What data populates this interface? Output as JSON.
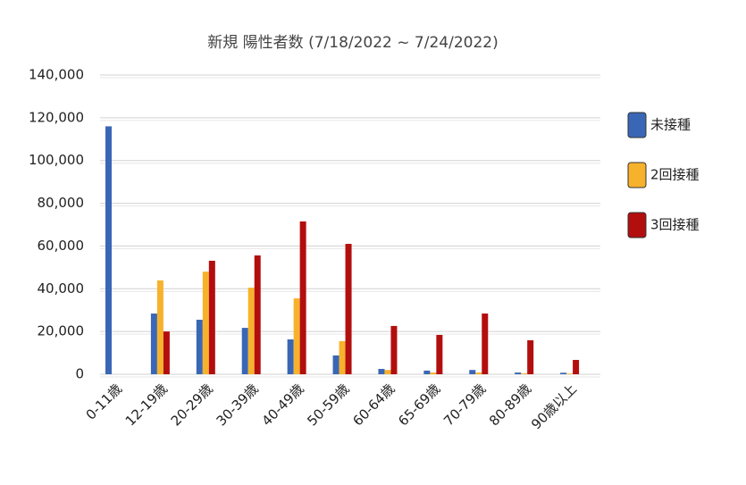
{
  "chart_data": {
    "type": "bar",
    "title": "新規 陽性者数 (7/18/2022 ~ 7/24/2022)",
    "categories": [
      "0-11歳",
      "12-19歳",
      "20-29歳",
      "30-39歳",
      "40-49歳",
      "50-59歳",
      "60-64歳",
      "65-69歳",
      "70-79歳",
      "80-89歳",
      "90歳以上"
    ],
    "series": [
      {
        "name": "未接種",
        "color": "#3a67b5",
        "values": [
          116000,
          28400,
          25500,
          21700,
          16300,
          8800,
          2500,
          1700,
          2000,
          800,
          700
        ]
      },
      {
        "name": "2回接種",
        "color": "#f7b22c",
        "values": [
          0,
          43900,
          48000,
          40500,
          35500,
          15500,
          2000,
          800,
          800,
          400,
          300
        ]
      },
      {
        "name": "3回接種",
        "color": "#b30e0e",
        "values": [
          0,
          20000,
          53100,
          55600,
          71500,
          61000,
          22600,
          18400,
          28400,
          15900,
          6700
        ]
      }
    ],
    "ylim": [
      0,
      140000
    ],
    "yticks": [
      0,
      {
        "value": 20000,
        "label": "20,000"
      },
      {
        "value": 40000,
        "label": "40,000"
      },
      {
        "value": 60000,
        "label": "60,000"
      },
      {
        "value": 80000,
        "label": "80,000"
      },
      {
        "value": 100000,
        "label": "100,000"
      },
      {
        "value": 120000,
        "label": "120,000"
      },
      {
        "value": 140000,
        "label": "140,000"
      }
    ],
    "grid": true,
    "legend": "right"
  }
}
